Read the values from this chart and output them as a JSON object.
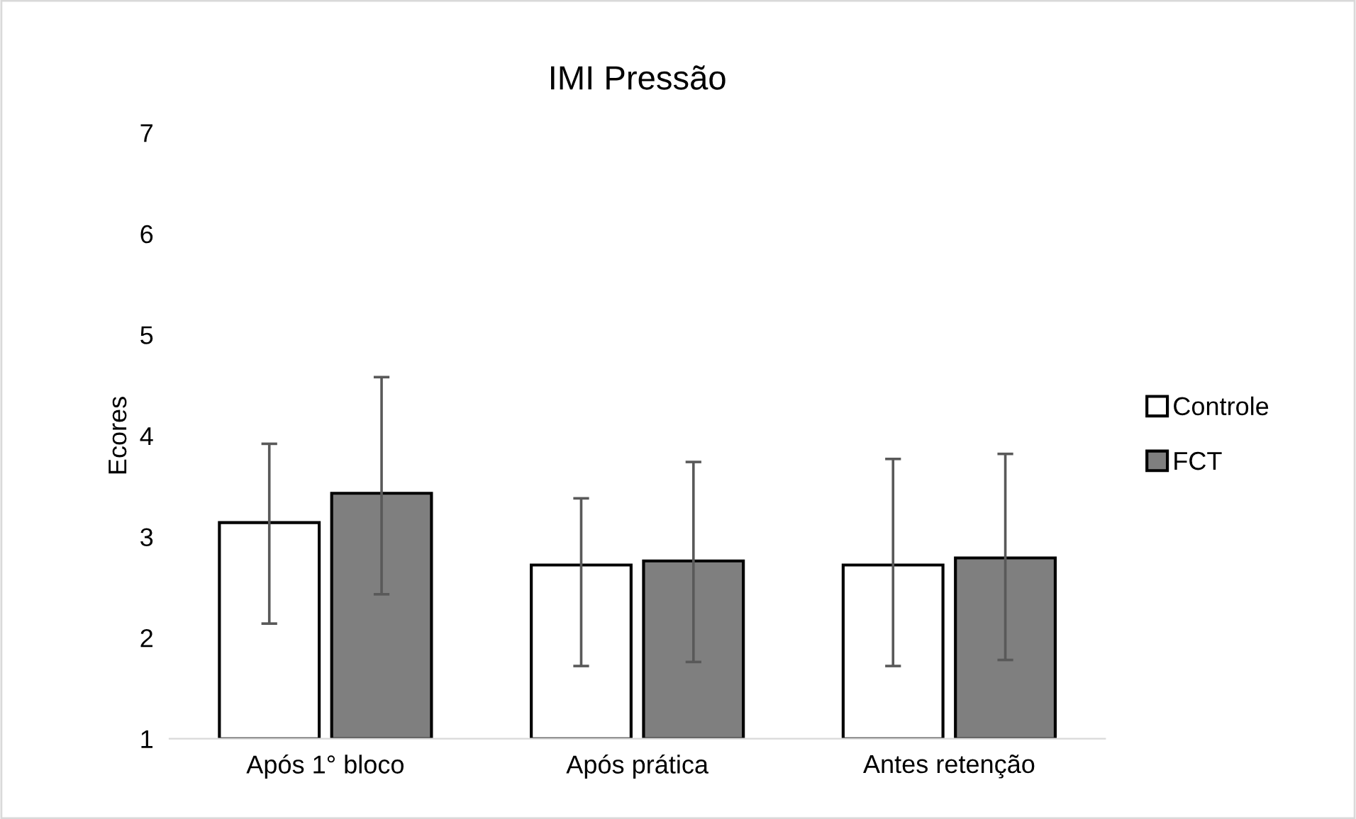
{
  "chart_data": {
    "type": "bar",
    "title": "IMI Pressão",
    "ylabel": "Ecores",
    "categories": [
      "Após 1° bloco",
      "Após prática",
      "Antes retenção"
    ],
    "series": [
      {
        "name": "Controle",
        "color": "#ffffff",
        "values": [
          3.14,
          2.72,
          2.72
        ],
        "errors": [
          [
            2.14,
            3.92
          ],
          [
            1.72,
            3.38
          ],
          [
            1.72,
            3.77
          ]
        ]
      },
      {
        "name": "FCT",
        "color": "#7f7f7f",
        "values": [
          3.43,
          2.76,
          2.79
        ],
        "errors": [
          [
            2.43,
            4.58
          ],
          [
            1.76,
            3.74
          ],
          [
            1.78,
            3.82
          ]
        ]
      }
    ],
    "ylim": [
      1,
      7
    ],
    "yticks": [
      1,
      2,
      3,
      4,
      5,
      6,
      7
    ],
    "grid": false,
    "legend": "right"
  }
}
